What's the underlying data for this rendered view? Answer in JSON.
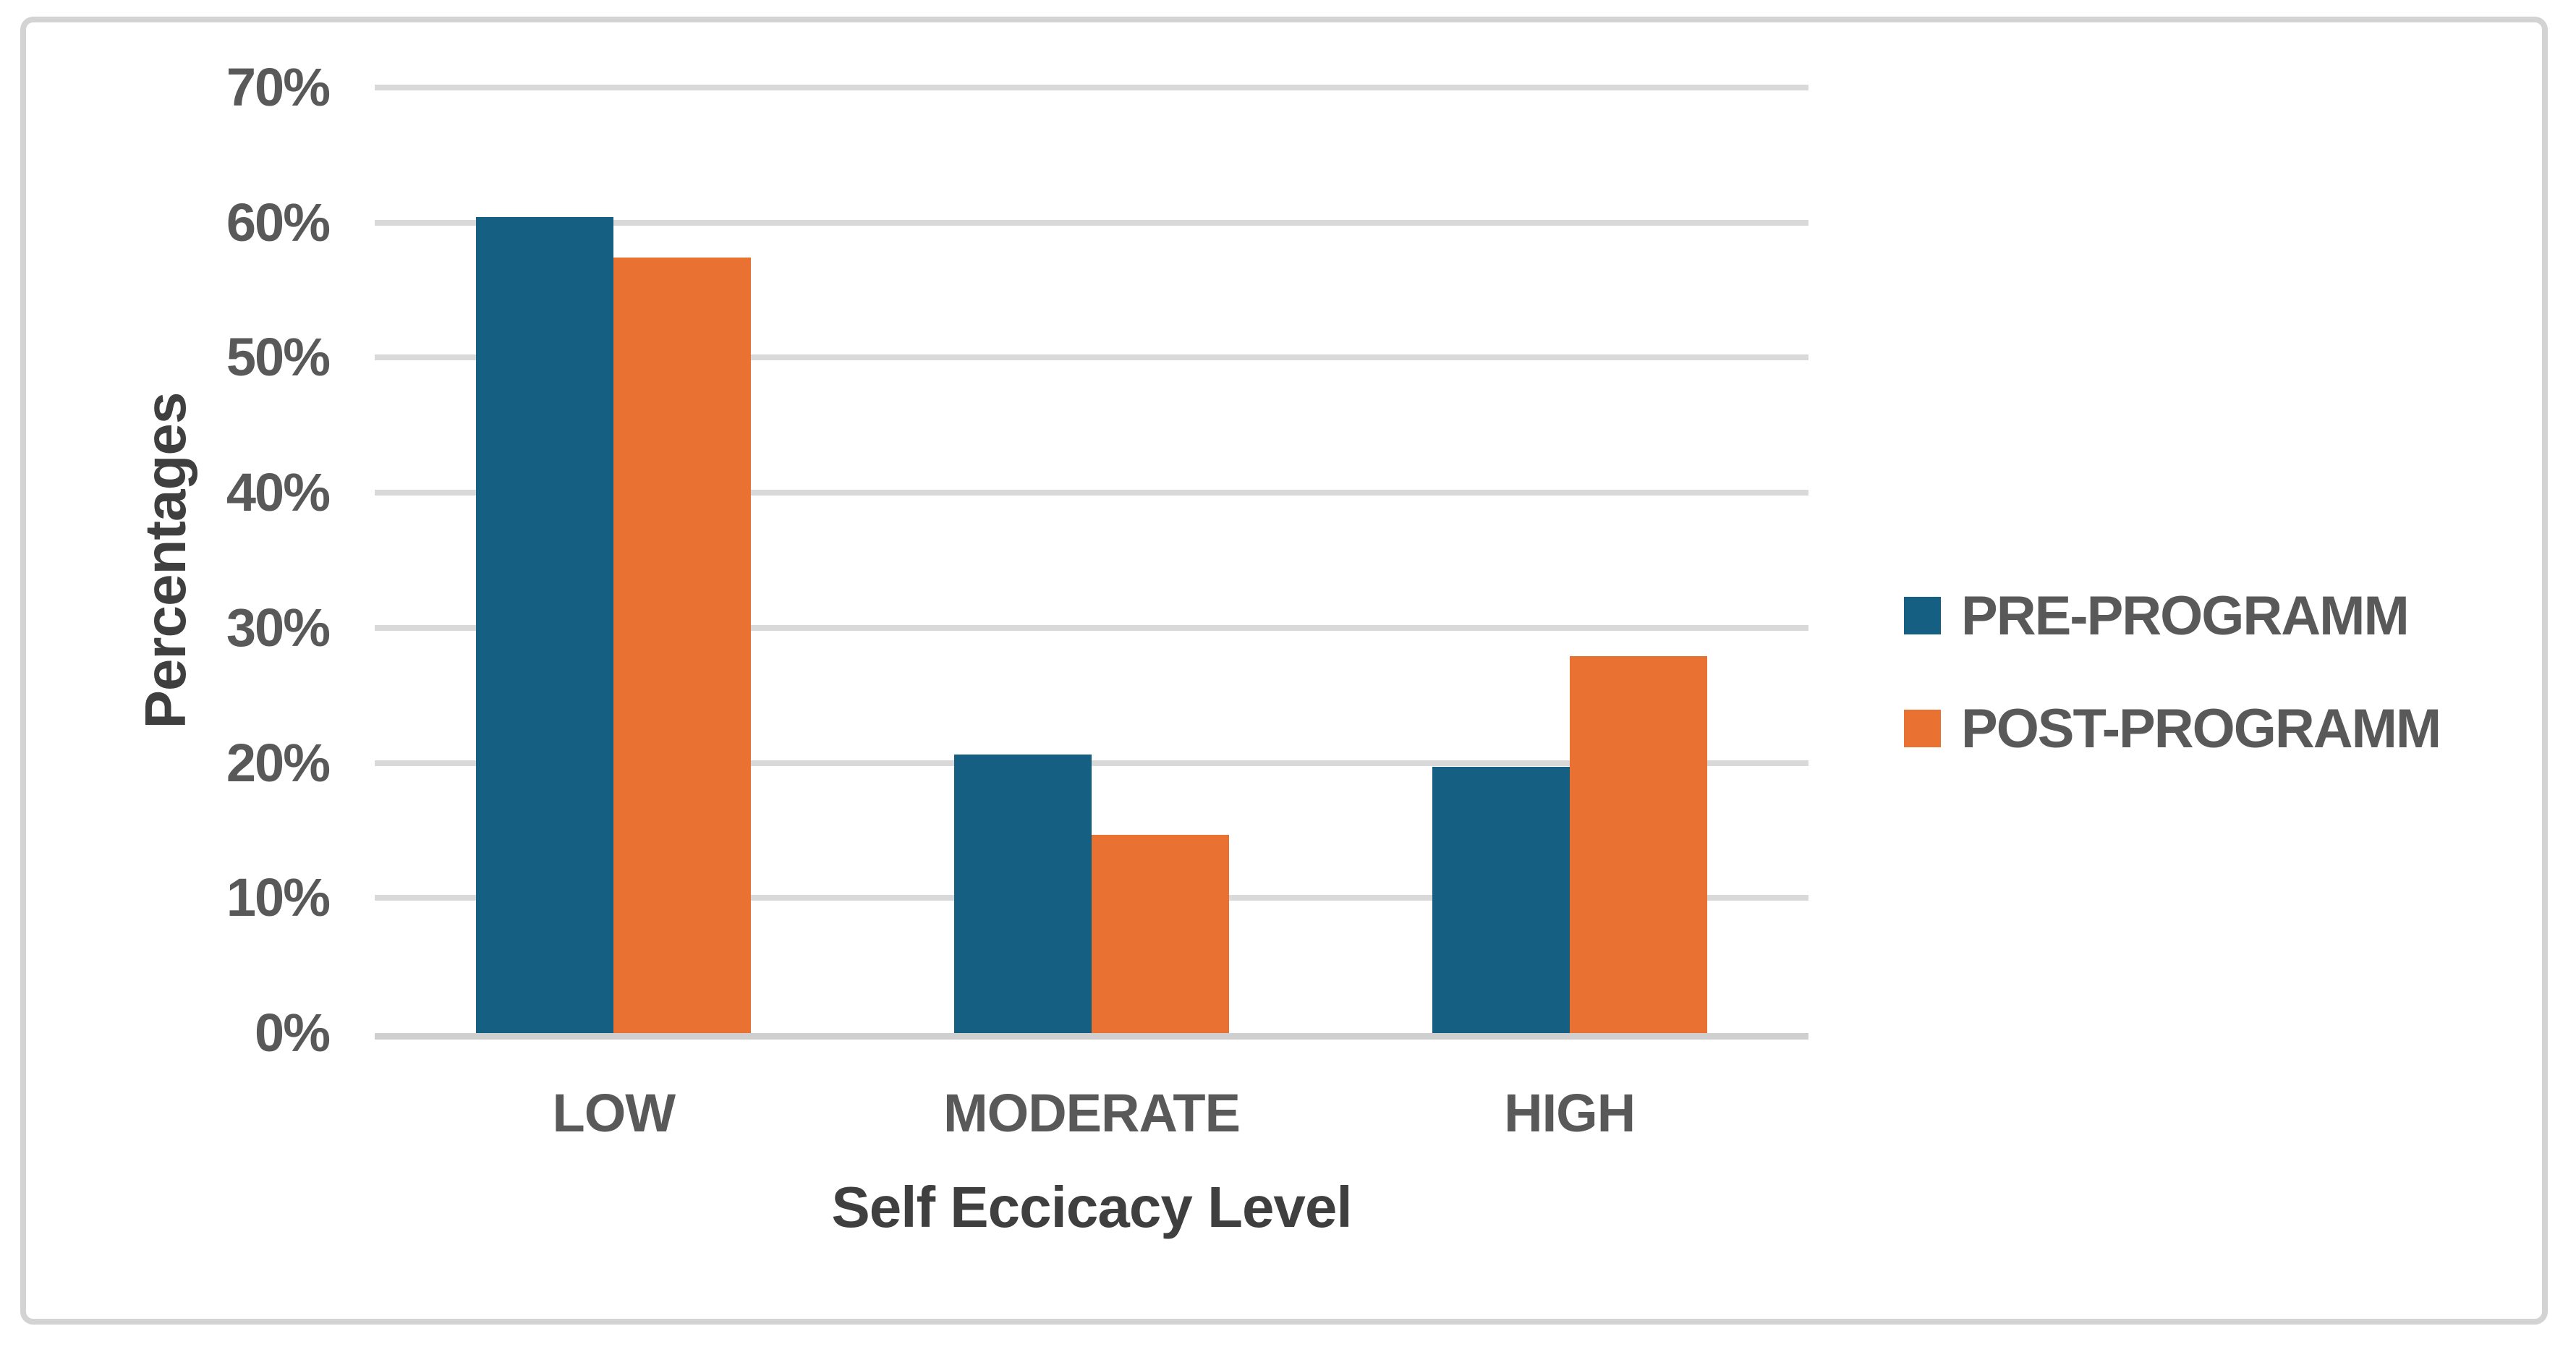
{
  "chart_data": {
    "type": "bar",
    "title": "",
    "categories": [
      "LOW",
      "MODERATE",
      "HIGH"
    ],
    "series": [
      {
        "name": "PRE-PROGRAMM",
        "color": "#156082",
        "values": [
          60.4,
          20.6,
          19.7
        ]
      },
      {
        "name": "POST-PROGRAMM",
        "color": "#E97132",
        "values": [
          57.4,
          14.7,
          27.9
        ]
      }
    ],
    "xlabel": "Self Eccicacy Level",
    "ylabel": "Percentages",
    "ylim": [
      0,
      70
    ],
    "ytick_step": 10,
    "ytick_labels": [
      "0%",
      "10%",
      "20%",
      "30%",
      "40%",
      "50%",
      "60%",
      "70%"
    ],
    "grid": true,
    "legend_position": "right"
  },
  "colors": {
    "pre_series": "#156082",
    "post_series": "#E97132",
    "gridline": "#d9d9d9",
    "axis_line": "#cfcfcf",
    "frame_border": "#d3d3d3",
    "tick_text": "#595959",
    "title_text": "#3f3f3f",
    "background": "#ffffff"
  }
}
